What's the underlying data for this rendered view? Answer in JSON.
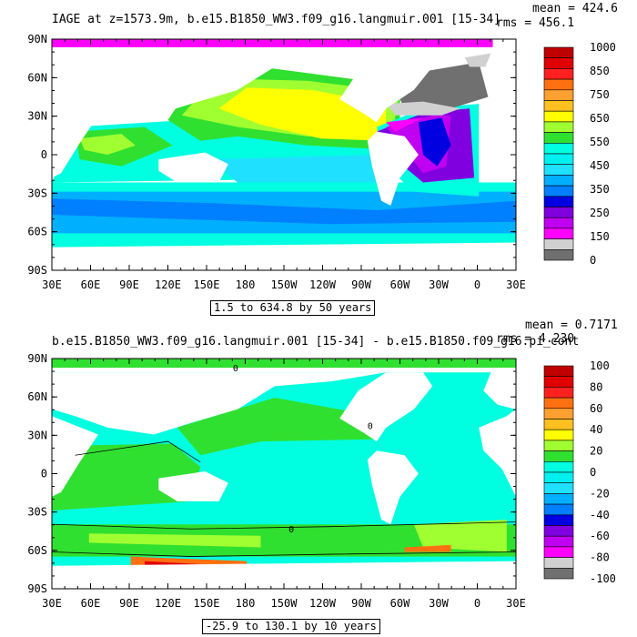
{
  "panel1": {
    "title": "IAGE at z=1573.9m, b.e15.B1850_WW3.f09_g16.langmuir.001 [15-34]",
    "mean": "mean = 424.6",
    "rms": "rms = 456.1",
    "contour_note": "1.5 to 634.8 by 50 years",
    "lat_ticks": [
      "90N",
      "60N",
      "30N",
      "0",
      "30S",
      "60S",
      "90S"
    ],
    "lon_ticks": [
      "30E",
      "60E",
      "90E",
      "120E",
      "150E",
      "180",
      "150W",
      "120W",
      "90W",
      "60W",
      "30W",
      "0",
      "30E"
    ],
    "colorbar_labels": [
      "1000",
      "850",
      "750",
      "650",
      "550",
      "450",
      "350",
      "250",
      "150",
      "0"
    ],
    "colorbar_colors": [
      "#c00000",
      "#e00000",
      "#ff2020",
      "#ff7010",
      "#ffa030",
      "#ffc020",
      "#ffff00",
      "#a0ff30",
      "#30e030",
      "#00ffe0",
      "#00f0f0",
      "#20e0ff",
      "#00b0ff",
      "#0080ff",
      "#0000e0",
      "#8000e0",
      "#c000f0",
      "#ff00ff",
      "#d0d0d0",
      "#707070"
    ]
  },
  "panel2": {
    "title": "b.e15.B1850_WW3.f09_g16.langmuir.001 [15-34] - b.e15.B1850.f09_g16.pi_cont",
    "mean": "mean = 0.7171",
    "rms": "rms = 4.230",
    "contour_note": "-25.9 to 130.1 by 10 years",
    "contour_label": "0",
    "lat_ticks": [
      "90N",
      "60N",
      "30N",
      "0",
      "30S",
      "60S",
      "90S"
    ],
    "lon_ticks": [
      "30E",
      "60E",
      "90E",
      "120E",
      "150E",
      "180",
      "150W",
      "120W",
      "90W",
      "60W",
      "30W",
      "0",
      "30E"
    ],
    "colorbar_labels": [
      "100",
      "80",
      "60",
      "40",
      "20",
      "0",
      "-20",
      "-40",
      "-60",
      "-80",
      "-100"
    ],
    "colorbar_colors": [
      "#c00000",
      "#e00000",
      "#ff2020",
      "#ff7010",
      "#ffa030",
      "#ffc020",
      "#ffff00",
      "#a0ff30",
      "#30e030",
      "#00ffe0",
      "#00f0f0",
      "#20e0ff",
      "#00b0ff",
      "#0080ff",
      "#0000e0",
      "#8000e0",
      "#c000f0",
      "#ff00ff",
      "#d0d0d0",
      "#707070"
    ]
  },
  "map_colors": {
    "land": "#ffffff",
    "yellow": "#ffff00",
    "lime": "#a0ff30",
    "green": "#30e030",
    "cyan": "#00ffe0",
    "lightcyan": "#20e0ff",
    "skyblue": "#00b0ff",
    "blue": "#0080ff",
    "darkblue": "#0000e0",
    "purple": "#8000e0",
    "violet": "#c000f0",
    "magenta": "#ff00ff",
    "gray": "#707070",
    "lightgray": "#d0d0d0",
    "orange": "#ff7010",
    "red": "#e00000"
  }
}
